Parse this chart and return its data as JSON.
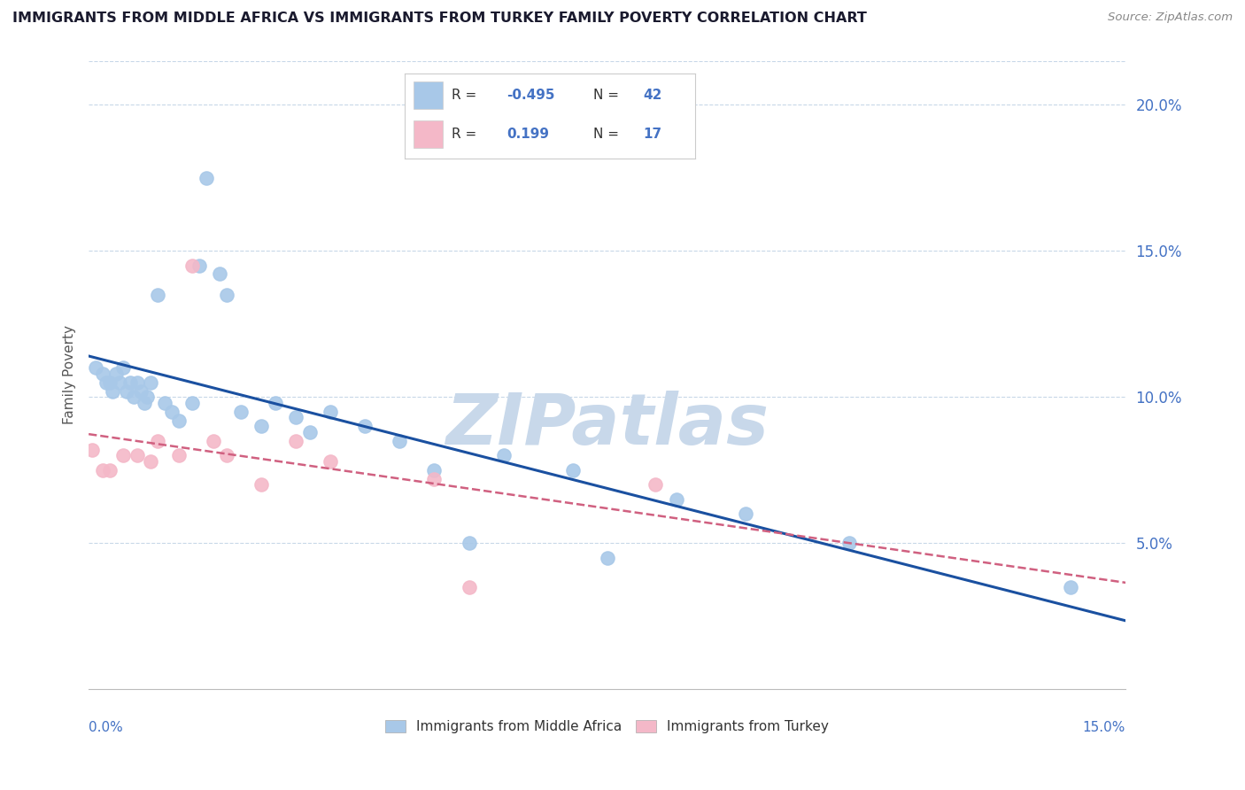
{
  "title": "IMMIGRANTS FROM MIDDLE AFRICA VS IMMIGRANTS FROM TURKEY FAMILY POVERTY CORRELATION CHART",
  "source_text": "Source: ZipAtlas.com",
  "ylabel": "Family Poverty",
  "xlim": [
    0.0,
    15.0
  ],
  "ylim": [
    0.0,
    21.5
  ],
  "yticks": [
    5.0,
    10.0,
    15.0,
    20.0
  ],
  "ytick_labels": [
    "5.0%",
    "10.0%",
    "15.0%",
    "20.0%"
  ],
  "watermark": "ZIPatlas",
  "blue_points_x": [
    0.1,
    0.2,
    0.25,
    0.3,
    0.35,
    0.4,
    0.45,
    0.5,
    0.55,
    0.6,
    0.65,
    0.7,
    0.75,
    0.8,
    0.85,
    0.9,
    1.0,
    1.1,
    1.2,
    1.3,
    1.5,
    1.7,
    1.9,
    2.0,
    2.2,
    2.5,
    2.7,
    3.0,
    3.2,
    3.5,
    4.0,
    4.5,
    5.0,
    5.5,
    6.0,
    7.0,
    7.5,
    8.5,
    9.5,
    11.0,
    14.2,
    1.6
  ],
  "blue_points_y": [
    11.0,
    10.8,
    10.5,
    10.5,
    10.2,
    10.8,
    10.5,
    11.0,
    10.2,
    10.5,
    10.0,
    10.5,
    10.2,
    9.8,
    10.0,
    10.5,
    13.5,
    9.8,
    9.5,
    9.2,
    9.8,
    17.5,
    14.2,
    13.5,
    9.5,
    9.0,
    9.8,
    9.3,
    8.8,
    9.5,
    9.0,
    8.5,
    7.5,
    5.0,
    8.0,
    7.5,
    4.5,
    6.5,
    6.0,
    5.0,
    3.5,
    14.5
  ],
  "pink_points_x": [
    0.05,
    0.2,
    0.3,
    0.5,
    0.7,
    0.9,
    1.0,
    1.3,
    1.5,
    1.8,
    2.0,
    2.5,
    3.0,
    3.5,
    5.0,
    5.5,
    8.2
  ],
  "pink_points_y": [
    8.2,
    7.5,
    7.5,
    8.0,
    8.0,
    7.8,
    8.5,
    8.0,
    14.5,
    8.5,
    8.0,
    7.0,
    8.5,
    7.8,
    7.2,
    3.5,
    7.0
  ],
  "blue_color": "#a8c8e8",
  "pink_color": "#f4b8c8",
  "blue_trend_color": "#1a50a0",
  "pink_trend_color": "#d06080",
  "blue_R": -0.495,
  "blue_N": 42,
  "pink_R": 0.199,
  "pink_N": 17,
  "title_color": "#1a1a2e",
  "source_color": "#888888",
  "background_color": "#ffffff",
  "grid_color": "#c8d8e8",
  "watermark_color": "#c8d8ea",
  "label_color": "#4472c4"
}
